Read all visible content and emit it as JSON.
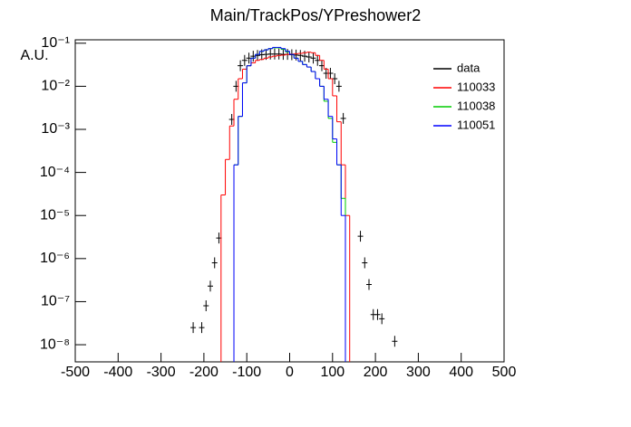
{
  "chart_data": {
    "type": "histogram",
    "title": "Main/TrackPos/YPreshower2",
    "y_label": "A.U.",
    "log_y": true,
    "xlim": [
      -500,
      500
    ],
    "xticks": [
      -500,
      -400,
      -300,
      -200,
      -100,
      0,
      100,
      200,
      300,
      400,
      500
    ],
    "ylim": [
      4e-09,
      0.12
    ],
    "yticks": [
      {
        "value": 1e-08,
        "label": "10⁻⁸"
      },
      {
        "value": 1e-07,
        "label": "10⁻⁷"
      },
      {
        "value": 1e-06,
        "label": "10⁻⁶"
      },
      {
        "value": 1e-05,
        "label": "10⁻⁵"
      },
      {
        "value": 0.0001,
        "label": "10⁻⁴"
      },
      {
        "value": 0.001,
        "label": "10⁻³"
      },
      {
        "value": 0.01,
        "label": "10⁻²"
      },
      {
        "value": 0.1,
        "label": "10⁻¹"
      }
    ],
    "legend": "top-right",
    "series": [
      {
        "name": "data",
        "color": "#000000",
        "x": [
          -225,
          -205,
          -195,
          -185,
          -175,
          -165,
          -135,
          -125,
          -115,
          -105,
          -95,
          -85,
          -75,
          -65,
          -55,
          -45,
          -35,
          -25,
          -15,
          -5,
          5,
          15,
          25,
          35,
          45,
          55,
          65,
          75,
          85,
          95,
          105,
          115,
          125,
          165,
          175,
          185,
          195,
          205,
          215,
          245
        ],
        "values": [
          2.5e-08,
          2.5e-08,
          8e-08,
          2.3e-07,
          8e-07,
          3e-06,
          0.0017,
          0.01,
          0.03,
          0.04,
          0.045,
          0.05,
          0.052,
          0.054,
          0.055,
          0.056,
          0.056,
          0.056,
          0.055,
          0.055,
          0.054,
          0.053,
          0.052,
          0.05,
          0.048,
          0.045,
          0.04,
          0.03,
          0.02,
          0.02,
          0.015,
          0.01,
          0.0018,
          3.3e-06,
          8e-07,
          2.5e-07,
          5e-08,
          5e-08,
          4e-08,
          1.2e-08
        ]
      },
      {
        "name": "110033",
        "color": "#ff0000",
        "bins": [
          -160,
          -150,
          -140,
          -130,
          -120,
          -110,
          -100,
          -90,
          -80,
          -70,
          -60,
          -50,
          -40,
          -30,
          -20,
          -10,
          0,
          10,
          20,
          30,
          40,
          50,
          60,
          70,
          80,
          90,
          100,
          110,
          120,
          130,
          140
        ],
        "values": [
          3e-05,
          0.0002,
          0.0012,
          0.005,
          0.015,
          0.025,
          0.03,
          0.035,
          0.04,
          0.042,
          0.045,
          0.048,
          0.05,
          0.052,
          0.053,
          0.055,
          0.056,
          0.057,
          0.058,
          0.06,
          0.062,
          0.06,
          0.052,
          0.04,
          0.025,
          0.015,
          0.006,
          0.0015,
          0.00015,
          1e-05
        ]
      },
      {
        "name": "110038",
        "color": "#00cc00",
        "bins": [
          -130,
          -120,
          -110,
          -100,
          -90,
          -80,
          -70,
          -60,
          -50,
          -40,
          -30,
          -20,
          -10,
          0,
          10,
          20,
          30,
          40,
          50,
          60,
          70,
          80,
          90,
          100,
          110,
          120,
          130
        ],
        "values": [
          0.00015,
          0.002,
          0.012,
          0.03,
          0.045,
          0.055,
          0.065,
          0.07,
          0.075,
          0.078,
          0.078,
          0.072,
          0.063,
          0.055,
          0.045,
          0.038,
          0.032,
          0.028,
          0.022,
          0.015,
          0.01,
          0.0045,
          0.0018,
          0.0005,
          0.00015,
          2.5e-05
        ]
      },
      {
        "name": "110051",
        "color": "#0000ff",
        "bins": [
          -130,
          -120,
          -110,
          -100,
          -90,
          -80,
          -70,
          -60,
          -50,
          -40,
          -30,
          -20,
          -10,
          0,
          10,
          20,
          30,
          40,
          50,
          60,
          70,
          80,
          90,
          100,
          110,
          120,
          130
        ],
        "values": [
          0.00015,
          0.002,
          0.012,
          0.03,
          0.045,
          0.055,
          0.065,
          0.07,
          0.075,
          0.08,
          0.08,
          0.075,
          0.065,
          0.055,
          0.045,
          0.038,
          0.032,
          0.028,
          0.022,
          0.015,
          0.01,
          0.005,
          0.002,
          0.0006,
          0.00015,
          1e-05
        ]
      }
    ]
  }
}
